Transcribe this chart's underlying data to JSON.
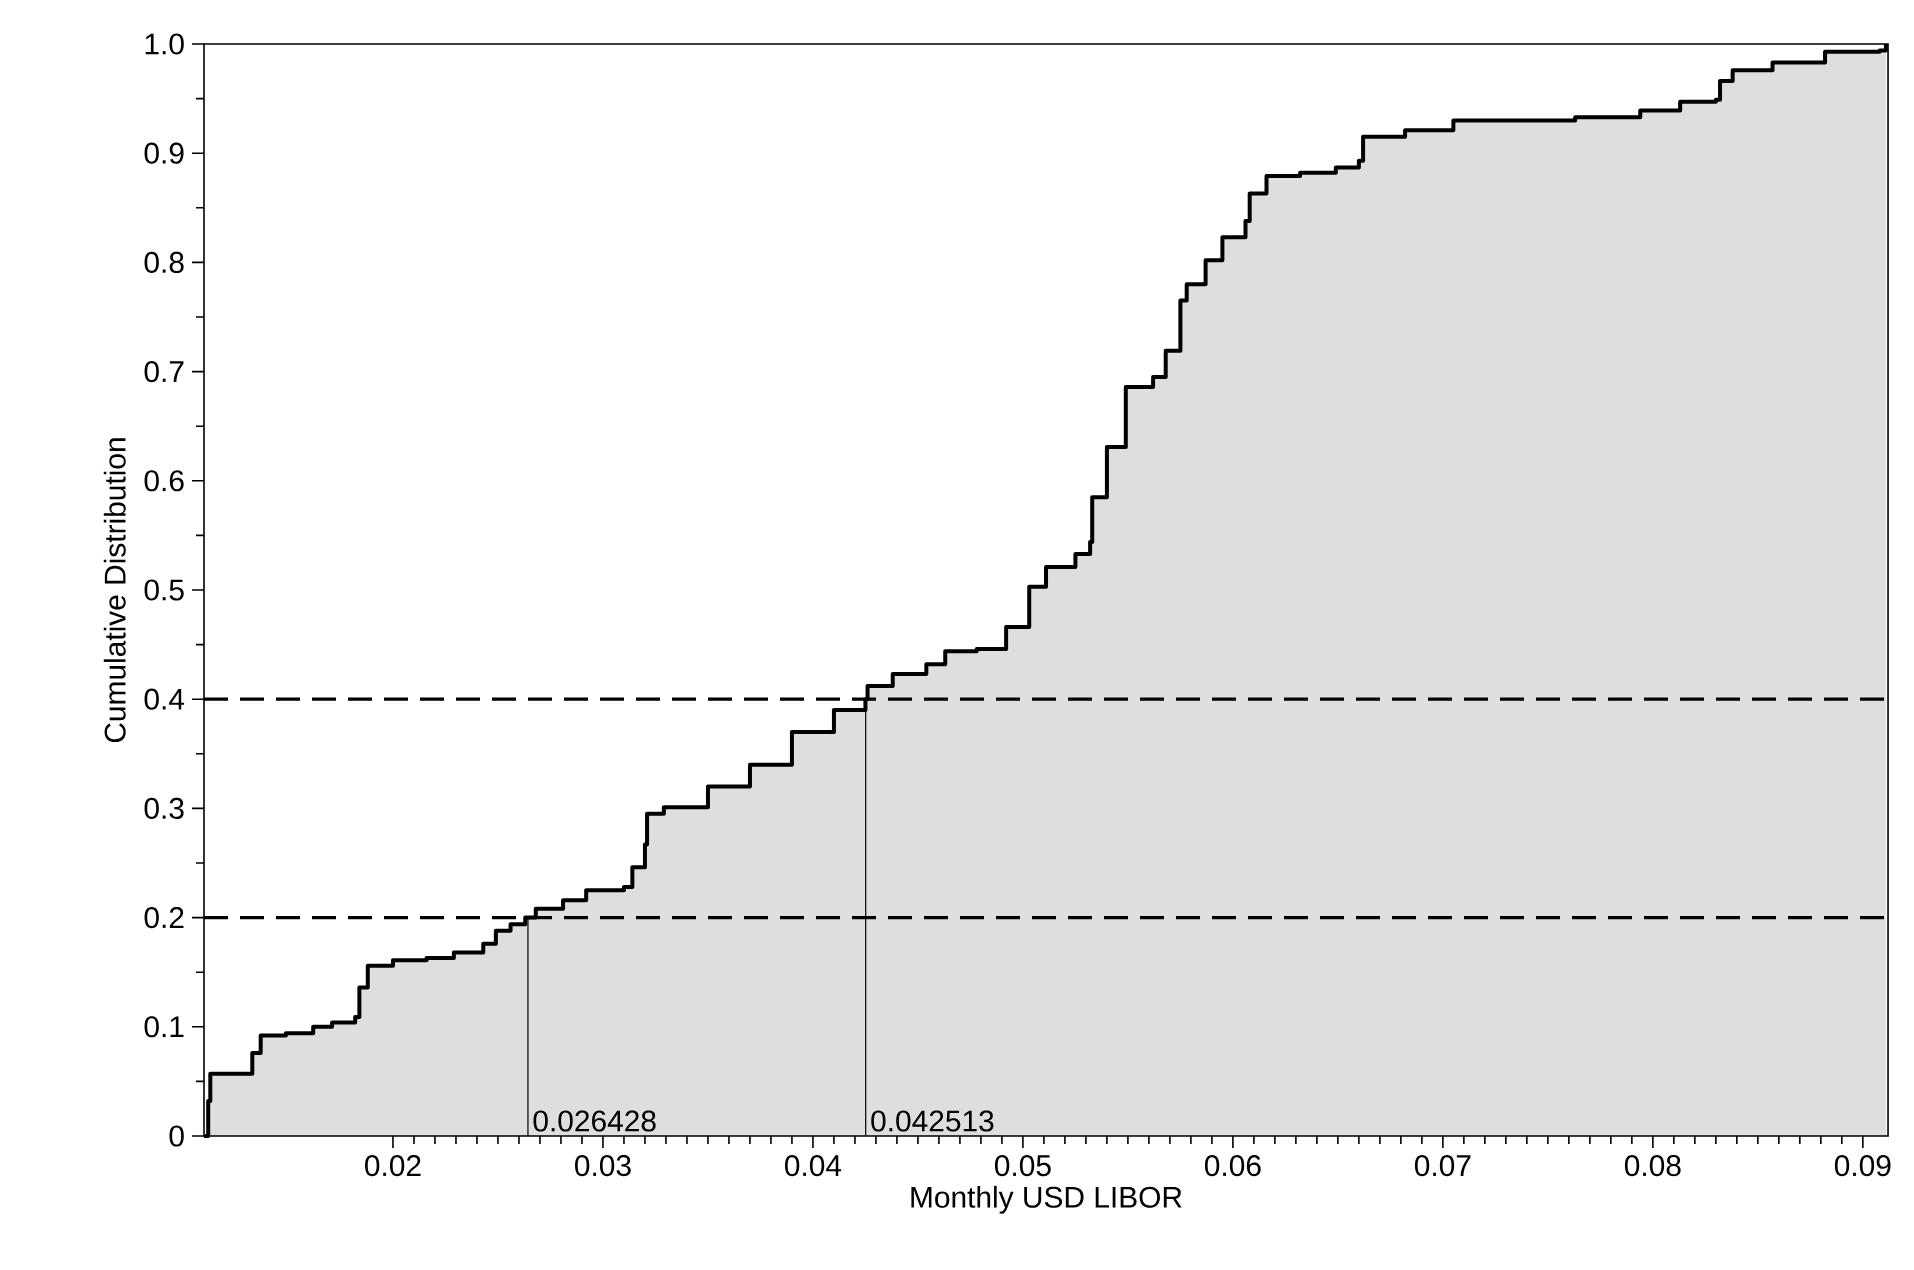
{
  "chart_data": {
    "type": "step",
    "xlabel": "Monthly USD LIBOR",
    "ylabel": "Cumulative Distribution",
    "xlim": [
      0.011,
      0.0912
    ],
    "ylim": [
      0,
      1
    ],
    "xticks": [
      0.02,
      0.03,
      0.04,
      0.05,
      0.06,
      0.07,
      0.08,
      0.09
    ],
    "yticks": [
      0,
      {
        "value": 0.1,
        "label": "0.1"
      },
      {
        "value": 0.2,
        "label": "0.2"
      },
      {
        "value": 0.3,
        "label": "0.3"
      },
      {
        "value": 0.4,
        "label": "0.4"
      },
      {
        "value": 0.5,
        "label": "0.5"
      },
      {
        "value": 0.6,
        "label": "0.6"
      },
      {
        "value": 0.7,
        "label": "0.7"
      },
      {
        "value": 0.8,
        "label": "0.8"
      },
      {
        "value": 0.9,
        "label": "0.9"
      },
      {
        "value": 1,
        "label": "1.0"
      }
    ],
    "grid": false,
    "marker": "none",
    "line_style": "solid",
    "ref_lines": [
      {
        "axis": "y",
        "value": 0.2,
        "line_style": "dashed"
      },
      {
        "axis": "y",
        "value": 0.4,
        "line_style": "dashed"
      }
    ],
    "annotations": [
      {
        "text": "0.026428",
        "x": 0.026428,
        "y": 0.2
      },
      {
        "text": "0.042513",
        "x": 0.042513,
        "y": 0.4
      }
    ],
    "series": [
      {
        "color": "#000000",
        "x": [
          0.011,
          0.0112,
          0.0113,
          0.0131,
          0.0133,
          0.0137,
          0.0149,
          0.0162,
          0.0171,
          0.0182,
          0.0184,
          0.0188,
          0.02,
          0.0216,
          0.0229,
          0.0243,
          0.0249,
          0.0256,
          0.0263,
          0.0268,
          0.0281,
          0.0292,
          0.031,
          0.0314,
          0.032,
          0.0321,
          0.0329,
          0.035,
          0.037,
          0.039,
          0.041,
          0.0425,
          0.0426,
          0.0438,
          0.0454,
          0.0463,
          0.0478,
          0.0492,
          0.0503,
          0.0511,
          0.0525,
          0.0532,
          0.0533,
          0.054,
          0.0549,
          0.0562,
          0.0568,
          0.0575,
          0.0578,
          0.0587,
          0.0595,
          0.0606,
          0.0608,
          0.0616,
          0.0632,
          0.0649,
          0.066,
          0.0662,
          0.0682,
          0.0705,
          0.0763,
          0.0794,
          0.0813,
          0.083,
          0.0832,
          0.0838,
          0.0857,
          0.0882,
          0.0908,
          0.0911
        ],
        "values": [
          0,
          0.032,
          0.057,
          0.057,
          0.076,
          0.092,
          0.094,
          0.1,
          0.104,
          0.109,
          0.136,
          0.156,
          0.161,
          0.163,
          0.168,
          0.176,
          0.188,
          0.194,
          0.2,
          0.208,
          0.216,
          0.225,
          0.228,
          0.246,
          0.267,
          0.295,
          0.301,
          0.32,
          0.34,
          0.37,
          0.39,
          0.4,
          0.412,
          0.423,
          0.432,
          0.444,
          0.446,
          0.466,
          0.503,
          0.521,
          0.533,
          0.544,
          0.585,
          0.631,
          0.686,
          0.695,
          0.719,
          0.765,
          0.78,
          0.802,
          0.823,
          0.838,
          0.863,
          0.879,
          0.882,
          0.887,
          0.893,
          0.915,
          0.921,
          0.93,
          0.933,
          0.939,
          0.947,
          0.949,
          0.966,
          0.976,
          0.983,
          0.993,
          0.994,
          1.0
        ]
      }
    ]
  }
}
